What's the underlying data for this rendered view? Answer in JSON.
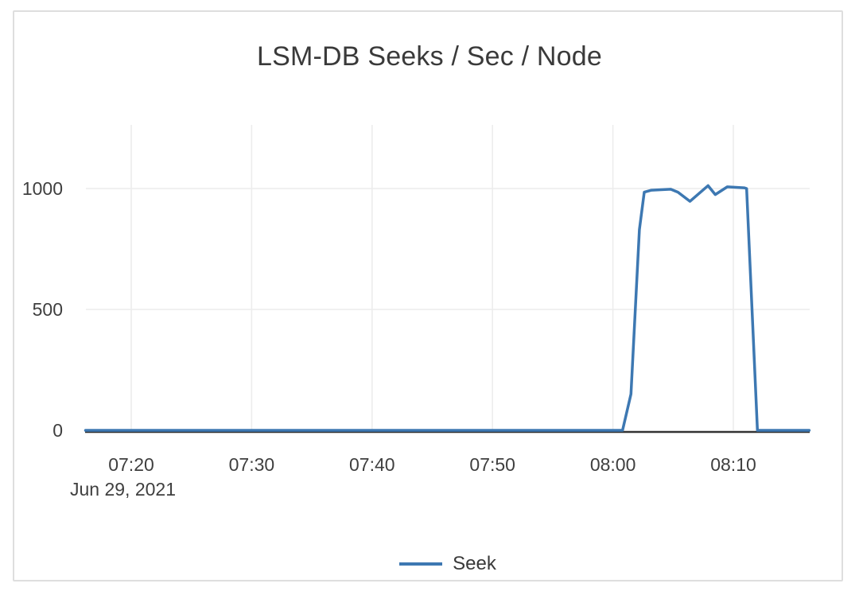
{
  "card": {
    "title": "LSM-DB Seeks / Sec / Node"
  },
  "colors": {
    "series_blue": "#3d78b2",
    "grid": "#ececec",
    "axis_line": "#333333",
    "text": "#3f3f3f",
    "card_border": "#dedede"
  },
  "legend": {
    "position": "bottom",
    "items": [
      {
        "label": "Seek",
        "color": "#3d78b2"
      }
    ]
  },
  "chart_data": {
    "type": "line",
    "title": "LSM-DB Seeks / Sec / Node",
    "xlabel": "",
    "ylabel": "",
    "grid": true,
    "legend_position": "bottom",
    "x_axis": {
      "date_label": "Jun 29, 2021",
      "tick_labels": [
        "07:20",
        "07:30",
        "07:40",
        "07:50",
        "08:00",
        "08:10"
      ],
      "tick_minutes": [
        20,
        30,
        40,
        50,
        60,
        70
      ],
      "unit": "time of day on Jun 29, 2021 (minutes since 07:00)",
      "range_minutes": [
        16.2,
        76.3
      ]
    },
    "y_axis": {
      "tick_labels": [
        "0",
        "500",
        "1000"
      ],
      "tick_values": [
        0,
        500,
        1000
      ],
      "range": [
        0,
        1265
      ],
      "unit": "seeks / sec / node"
    },
    "series": [
      {
        "name": "Seek",
        "color": "#3d78b2",
        "points_minutes_value": [
          [
            16.2,
            0
          ],
          [
            60.8,
            0
          ],
          [
            61.5,
            150
          ],
          [
            62.2,
            830
          ],
          [
            62.6,
            985
          ],
          [
            63.2,
            993
          ],
          [
            64.8,
            997
          ],
          [
            65.4,
            985
          ],
          [
            66.4,
            947
          ],
          [
            67.9,
            1012
          ],
          [
            68.5,
            975
          ],
          [
            69.5,
            1007
          ],
          [
            70.9,
            1003
          ],
          [
            71.1,
            1000
          ],
          [
            72.0,
            0
          ],
          [
            76.3,
            0
          ]
        ]
      }
    ]
  }
}
